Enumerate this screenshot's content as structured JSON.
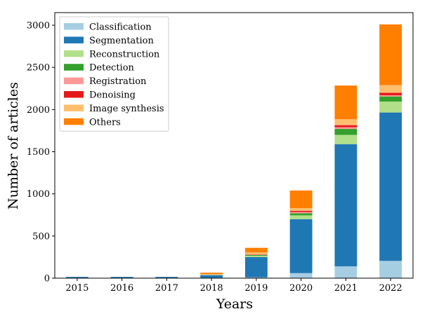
{
  "chart_data": {
    "type": "bar",
    "stacked": true,
    "title": "",
    "xlabel": "Years",
    "ylabel": "Number of articles",
    "categories": [
      "2015",
      "2016",
      "2017",
      "2018",
      "2019",
      "2020",
      "2021",
      "2022"
    ],
    "ylim": [
      0,
      3150
    ],
    "yticks": [
      0,
      500,
      1000,
      1500,
      2000,
      2500,
      3000
    ],
    "grid": false,
    "legend_position": "top-left",
    "series": [
      {
        "name": "Classification",
        "color": "#a6cee3",
        "values": [
          2,
          2,
          2,
          5,
          10,
          60,
          140,
          205
        ]
      },
      {
        "name": "Segmentation",
        "color": "#1f78b4",
        "values": [
          13,
          13,
          13,
          30,
          240,
          640,
          1450,
          1760
        ]
      },
      {
        "name": "Reconstruction",
        "color": "#b2df8a",
        "values": [
          0,
          0,
          0,
          3,
          15,
          45,
          110,
          130
        ]
      },
      {
        "name": "Detection",
        "color": "#33a02c",
        "values": [
          0,
          0,
          0,
          2,
          10,
          25,
          70,
          60
        ]
      },
      {
        "name": "Registration",
        "color": "#fb9a99",
        "values": [
          0,
          0,
          0,
          2,
          5,
          15,
          20,
          15
        ]
      },
      {
        "name": "Denoising",
        "color": "#e31a1c",
        "values": [
          0,
          0,
          0,
          1,
          5,
          15,
          25,
          30
        ]
      },
      {
        "name": "Image synthesis",
        "color": "#fdbf6f",
        "values": [
          0,
          0,
          0,
          5,
          20,
          30,
          70,
          90
        ]
      },
      {
        "name": "Others",
        "color": "#ff7f00",
        "values": [
          0,
          0,
          0,
          17,
          55,
          210,
          400,
          720
        ]
      }
    ]
  }
}
